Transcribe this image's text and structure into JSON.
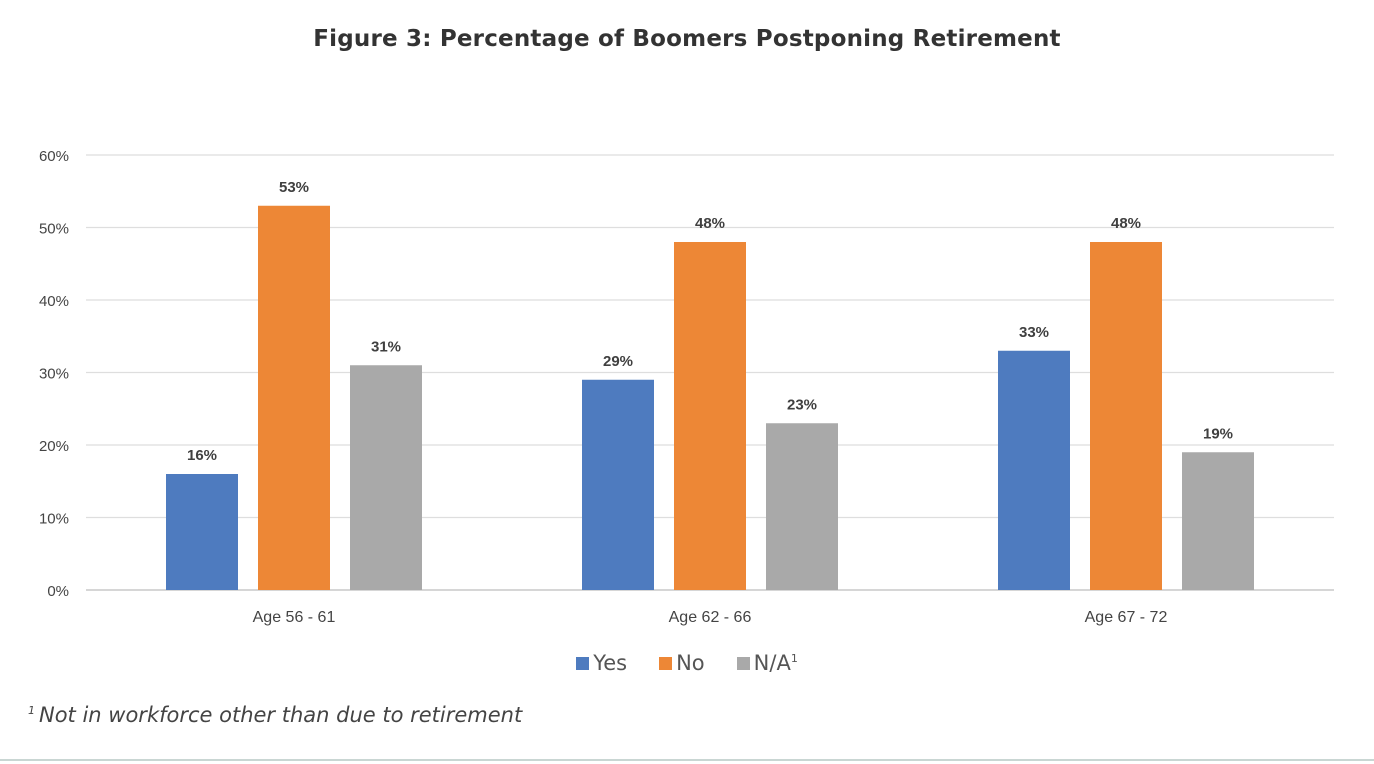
{
  "chart_data": {
    "type": "bar",
    "title": "Figure 3: Percentage of Boomers Postponing Retirement",
    "categories": [
      "Age 56 - 61",
      "Age 62 - 66",
      "Age 67 - 72"
    ],
    "series": [
      {
        "name": "Yes",
        "values": [
          16,
          29,
          33
        ],
        "color": "#4e7bbf",
        "labels": [
          "16%",
          "29%",
          "33%"
        ]
      },
      {
        "name": "No",
        "values": [
          53,
          48,
          48
        ],
        "color": "#ed8736",
        "labels": [
          "53%",
          "48%",
          "48%"
        ]
      },
      {
        "name": "N/A",
        "values": [
          31,
          23,
          19
        ],
        "color": "#a9a9a9",
        "labels": [
          "31%",
          "23%",
          "19%"
        ]
      }
    ],
    "ylim": [
      0,
      60
    ],
    "yticks": [
      "0%",
      "10%",
      "20%",
      "30%",
      "40%",
      "50%",
      "60%"
    ],
    "grid": true,
    "legend_position": "bottom"
  },
  "legend": {
    "yes": "Yes",
    "no": "No",
    "na": "N/A",
    "na_marker": "1"
  },
  "footnote": {
    "marker": "1",
    "text": "Not in workforce other than due to retirement"
  }
}
